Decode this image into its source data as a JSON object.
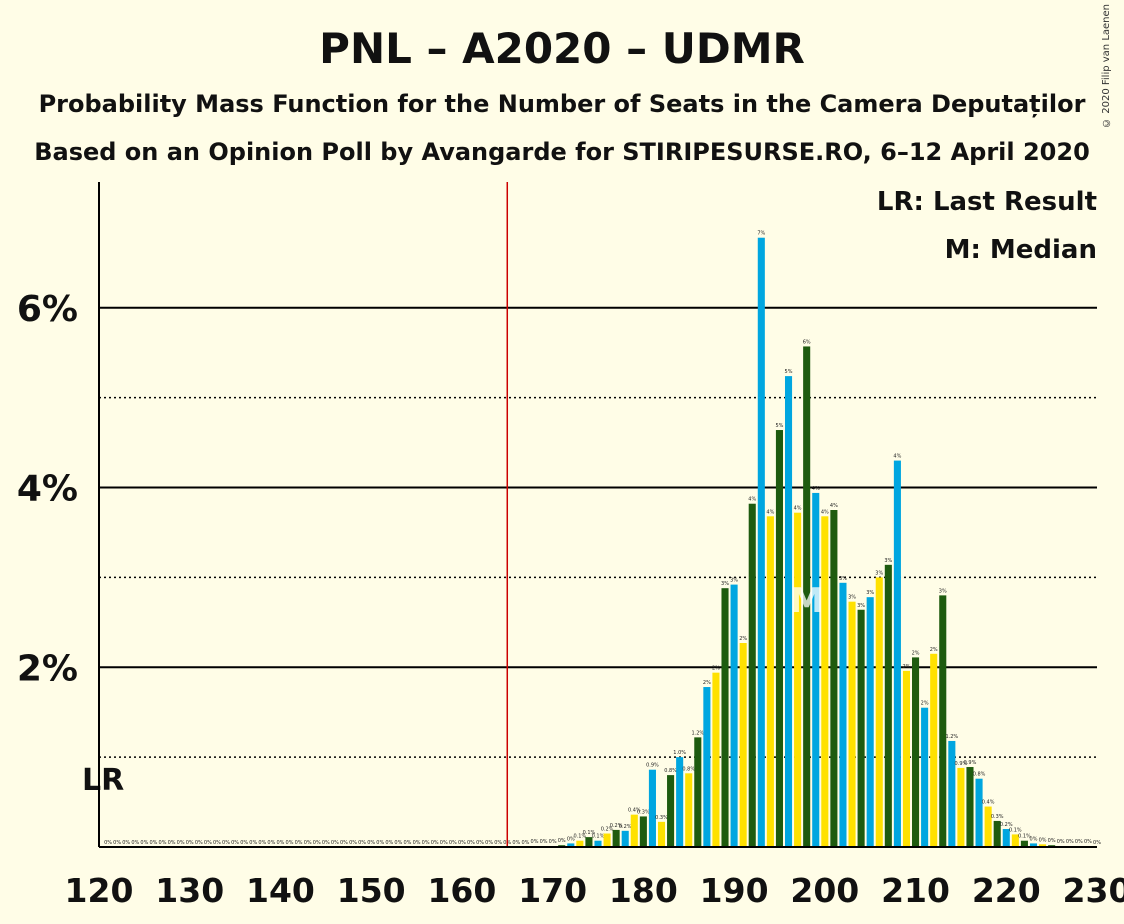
{
  "title": "PNL – A2020 – UDMR",
  "subtitle1": "Probability Mass Function for the Number of Seats in the Camera Deputaților",
  "subtitle2": "Based on an Opinion Poll by Avangarde for STIRIPESURSE.RO, 6–12 April 2020",
  "copyright": "© 2020 Filip van Laenen",
  "colors": {
    "blue": "#00A6E0",
    "yellow": "#FFE100",
    "green": "#1E5B0F",
    "lastResult": "#CC0000",
    "background": "#FFFDE7"
  },
  "chart_data": {
    "type": "bar",
    "xlim": [
      120,
      230
    ],
    "ylim": [
      0,
      7.4
    ],
    "x_ticks": [
      "120",
      "130",
      "140",
      "150",
      "160",
      "170",
      "180",
      "190",
      "200",
      "210",
      "220",
      "230"
    ],
    "y_ticks": [
      {
        "value": 2,
        "label": "2%"
      },
      {
        "value": 4,
        "label": "4%"
      },
      {
        "value": 6,
        "label": "6%"
      }
    ],
    "minor_gridlines": [
      1,
      3,
      5
    ],
    "last_result_seat": 165,
    "last_result_label": "LR",
    "median_seat": 198,
    "median_label": "M",
    "legend": [
      "LR: Last Result",
      "M: Median"
    ],
    "color_cycle": [
      "blue",
      "yellow",
      "green"
    ],
    "first_seat": 121,
    "values": [
      0,
      0,
      0,
      0,
      0,
      0,
      0,
      0,
      0,
      0,
      0,
      0,
      0,
      0,
      0,
      0,
      0,
      0,
      0,
      0,
      0,
      0,
      0,
      0,
      0,
      0,
      0,
      0,
      0,
      0,
      0,
      0,
      0,
      0,
      0,
      0,
      0,
      0,
      0,
      0,
      0,
      0,
      0,
      0,
      0,
      0,
      0,
      0.01,
      0.01,
      0.01,
      0.02,
      0.04,
      0.07,
      0.11,
      0.07,
      0.15,
      0.19,
      0.18,
      0.36,
      0.34,
      0.86,
      0.28,
      0.8,
      1.0,
      0.82,
      1.22,
      1.78,
      1.94,
      2.88,
      2.92,
      2.27,
      3.82,
      6.78,
      3.68,
      4.64,
      5.24,
      3.72,
      5.57,
      3.94,
      3.68,
      3.75,
      2.94,
      2.73,
      2.64,
      2.78,
      3.0,
      3.14,
      4.3,
      1.96,
      2.11,
      1.55,
      2.15,
      2.8,
      1.18,
      0.88,
      0.89,
      0.76,
      0.45,
      0.29,
      0.2,
      0.14,
      0.07,
      0.04,
      0.03,
      0.02,
      0.01,
      0.01,
      0.01,
      0.01,
      0
    ],
    "bar_labels": [
      "0%",
      "0%",
      "0%",
      "0%",
      "0%",
      "0%",
      "0%",
      "0%",
      "0%",
      "0%",
      "0%",
      "0%",
      "0%",
      "0%",
      "0%",
      "0%",
      "0%",
      "0%",
      "0%",
      "0%",
      "0%",
      "0%",
      "0%",
      "0%",
      "0%",
      "0%",
      "0%",
      "0%",
      "0%",
      "0%",
      "0%",
      "0%",
      "0%",
      "0%",
      "0%",
      "0%",
      "0%",
      "0%",
      "0%",
      "0%",
      "0%",
      "0%",
      "0%",
      "0%",
      "0%",
      "0%",
      "0%",
      "0%",
      "0%",
      "0%",
      "0%",
      "0%",
      "0.1%",
      "0.1%",
      "0.1%",
      "0.2%",
      "0.2%",
      "0.2%",
      "0.4%",
      "0.3%",
      "0.9%",
      "0.3%",
      "0.8%",
      "1.0%",
      "0.8%",
      "1.2%",
      "2%",
      "2%",
      "3%",
      "3%",
      "2%",
      "4%",
      "7%",
      "4%",
      "5%",
      "5%",
      "4%",
      "6%",
      "4%",
      "4%",
      "4%",
      "3%",
      "3%",
      "3%",
      "3%",
      "3%",
      "3%",
      "4%",
      "2%",
      "2%",
      "2%",
      "2%",
      "3%",
      "1.2%",
      "0.9%",
      "0.9%",
      "0.8%",
      "0.4%",
      "0.3%",
      "0.2%",
      "0.1%",
      "0.1%",
      "0%",
      "0%",
      "0%",
      "0%",
      "0%",
      "0%",
      "0%",
      "0%"
    ]
  }
}
